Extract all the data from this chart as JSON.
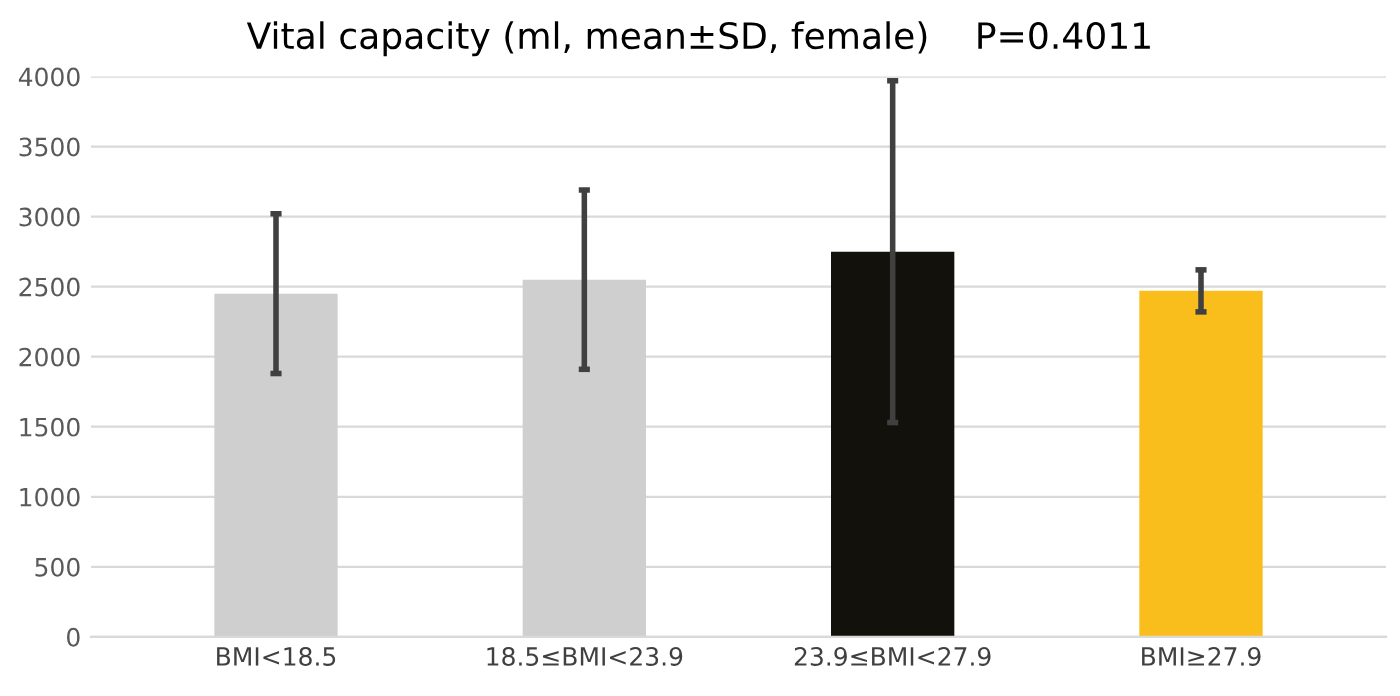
{
  "chart_data": {
    "type": "bar",
    "title": "Vital capacity (ml, mean±SD, female)",
    "annotations": [
      "P=0.4011"
    ],
    "categories": [
      "BMI<18.5",
      "18.5≤BMI<23.9",
      "23.9≤BMI<27.9",
      "BMI≥27.9"
    ],
    "values": [
      2450,
      2550,
      2750,
      2470
    ],
    "errors": [
      570,
      640,
      1220,
      150
    ],
    "colors": [
      "#cfcfcf",
      "#cfcfcf",
      "#12110c",
      "#f9be1c"
    ],
    "ylim": [
      0,
      4000
    ],
    "yticks": [
      0,
      500,
      1000,
      1500,
      2000,
      2500,
      3000,
      3500,
      4000
    ],
    "grid": "y"
  }
}
